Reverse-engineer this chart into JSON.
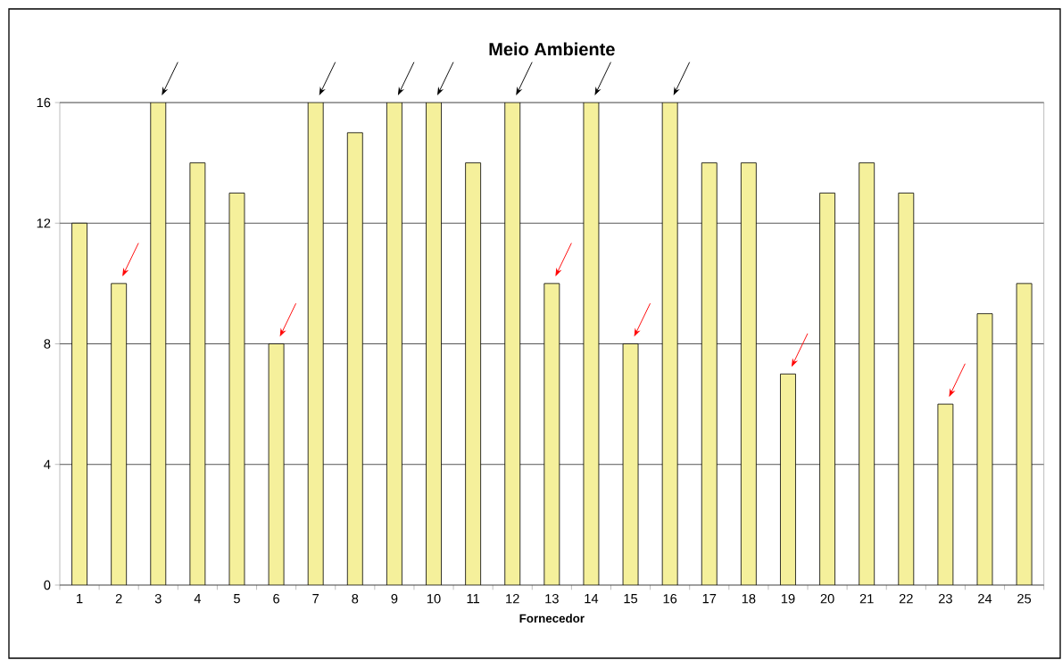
{
  "chart_data": {
    "type": "bar",
    "title": "Meio Ambiente",
    "xlabel": "Fornecedor",
    "categories": [
      "1",
      "2",
      "3",
      "4",
      "5",
      "6",
      "7",
      "8",
      "9",
      "10",
      "11",
      "12",
      "13",
      "14",
      "15",
      "16",
      "17",
      "18",
      "19",
      "20",
      "21",
      "22",
      "23",
      "24",
      "25"
    ],
    "values": [
      12,
      10,
      16,
      14,
      13,
      8,
      16,
      15,
      16,
      16,
      14,
      16,
      10,
      16,
      8,
      16,
      14,
      14,
      7,
      13,
      14,
      13,
      6,
      9,
      10
    ],
    "color": "#f5f09b",
    "ylim": [
      0,
      16
    ],
    "yticks": [
      0,
      4,
      8,
      12,
      16
    ],
    "grid": "y"
  }
}
